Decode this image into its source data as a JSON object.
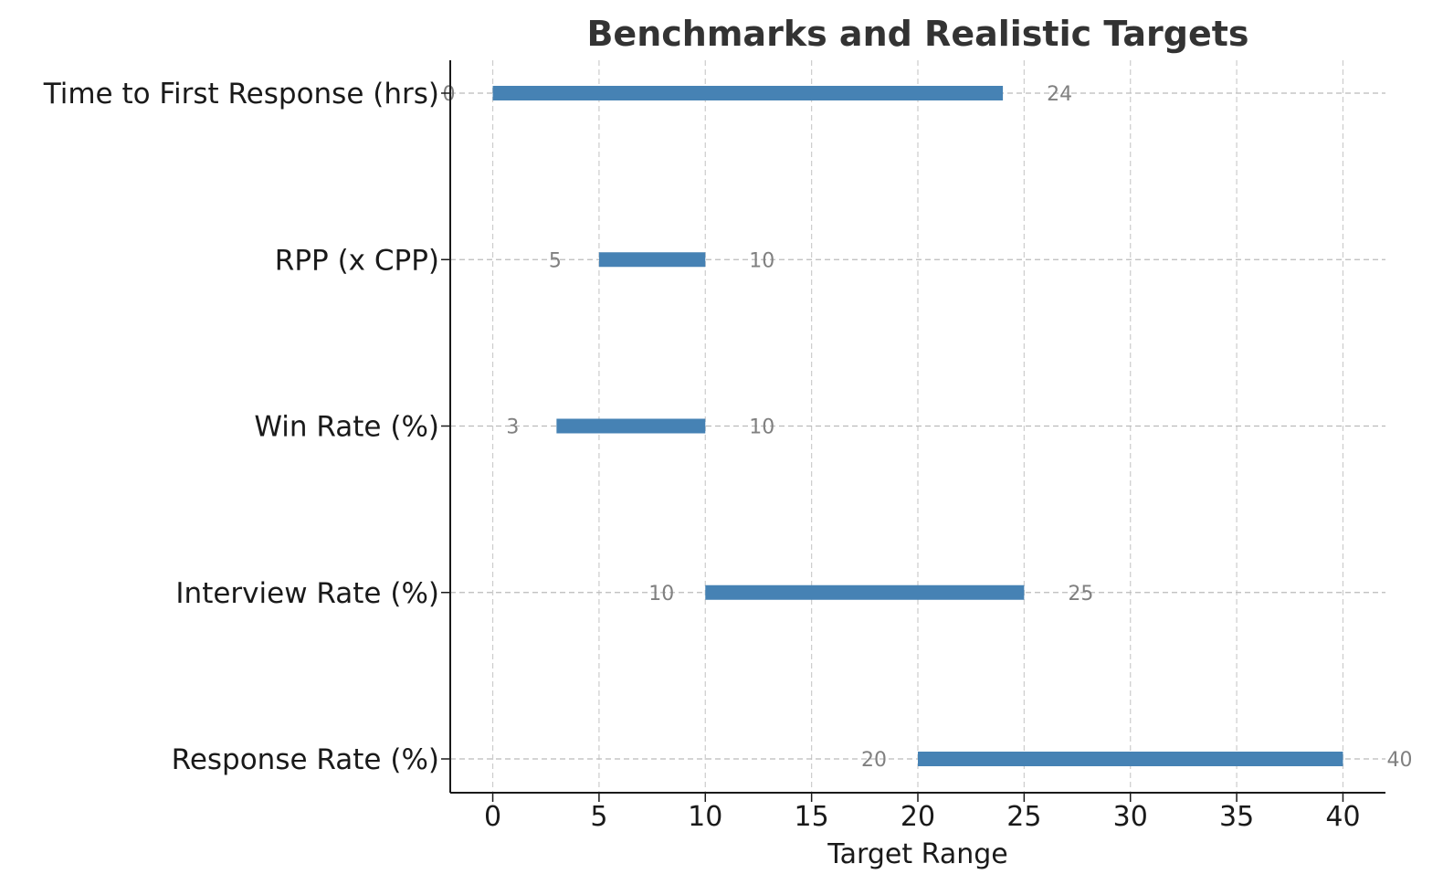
{
  "chart_data": {
    "type": "bar",
    "orientation": "horizontal-range",
    "title": "Benchmarks and Realistic Targets",
    "xlabel": "Target Range",
    "ylabel": "",
    "xlim": [
      -2,
      42
    ],
    "xticks": [
      0,
      5,
      10,
      15,
      20,
      25,
      30,
      35,
      40
    ],
    "xtick_labels": [
      "0",
      "5",
      "10",
      "15",
      "20",
      "25",
      "30",
      "35",
      "40"
    ],
    "grid": true,
    "bar_color": "#4682b4",
    "categories": [
      "Time to First Response (hrs)",
      "RPP (x CPP)",
      "Win Rate (%)",
      "Interview Rate (%)",
      "Response Rate (%)"
    ],
    "ranges": [
      {
        "low": 0,
        "high": 24,
        "low_label": "0",
        "high_label": "24"
      },
      {
        "low": 5,
        "high": 10,
        "low_label": "5",
        "high_label": "10"
      },
      {
        "low": 3,
        "high": 10,
        "low_label": "3",
        "high_label": "10"
      },
      {
        "low": 10,
        "high": 25,
        "low_label": "10",
        "high_label": "25"
      },
      {
        "low": 20,
        "high": 40,
        "low_label": "20",
        "high_label": "40"
      }
    ]
  }
}
